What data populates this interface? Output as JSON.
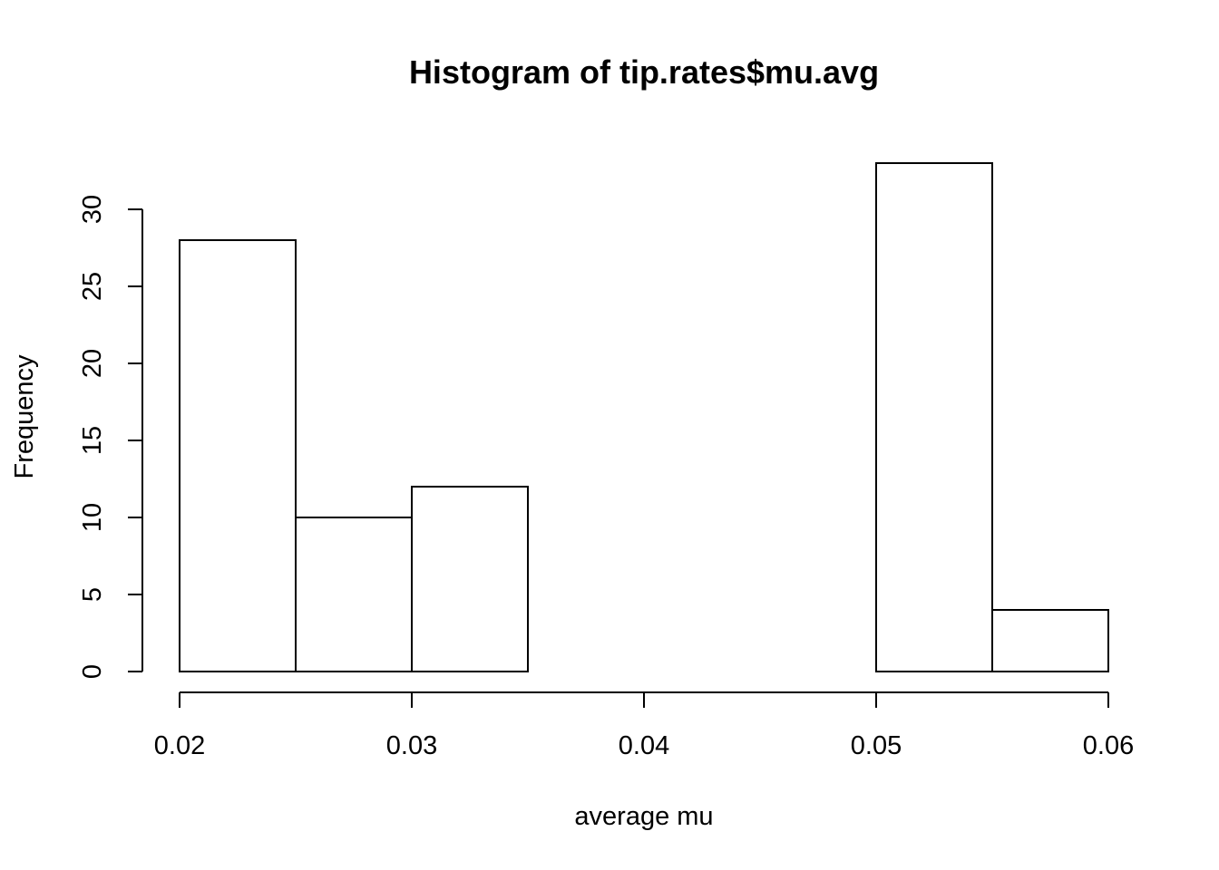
{
  "chart_data": {
    "type": "bar",
    "title": "Histogram of tip.rates$mu.avg",
    "xlabel": "average mu",
    "ylabel": "Frequency",
    "bins": [
      {
        "from": 0.02,
        "to": 0.025,
        "count": 28
      },
      {
        "from": 0.025,
        "to": 0.03,
        "count": 10
      },
      {
        "from": 0.03,
        "to": 0.035,
        "count": 12
      },
      {
        "from": 0.035,
        "to": 0.04,
        "count": 0
      },
      {
        "from": 0.04,
        "to": 0.045,
        "count": 0
      },
      {
        "from": 0.045,
        "to": 0.05,
        "count": 0
      },
      {
        "from": 0.05,
        "to": 0.055,
        "count": 33
      },
      {
        "from": 0.055,
        "to": 0.06,
        "count": 4
      }
    ],
    "xticks": [
      0.02,
      0.03,
      0.04,
      0.05,
      0.06
    ],
    "xtick_labels": [
      "0.02",
      "0.03",
      "0.04",
      "0.05",
      "0.06"
    ],
    "yticks": [
      0,
      5,
      10,
      15,
      20,
      25,
      30
    ],
    "ytick_labels": [
      "0",
      "5",
      "10",
      "15",
      "20",
      "25",
      "30"
    ],
    "xlim": [
      0.02,
      0.06
    ],
    "ylim": [
      0,
      33
    ],
    "grid": false,
    "legend": "none",
    "colors": {
      "bar_fill": "#ffffff",
      "bar_stroke": "#000000"
    }
  }
}
